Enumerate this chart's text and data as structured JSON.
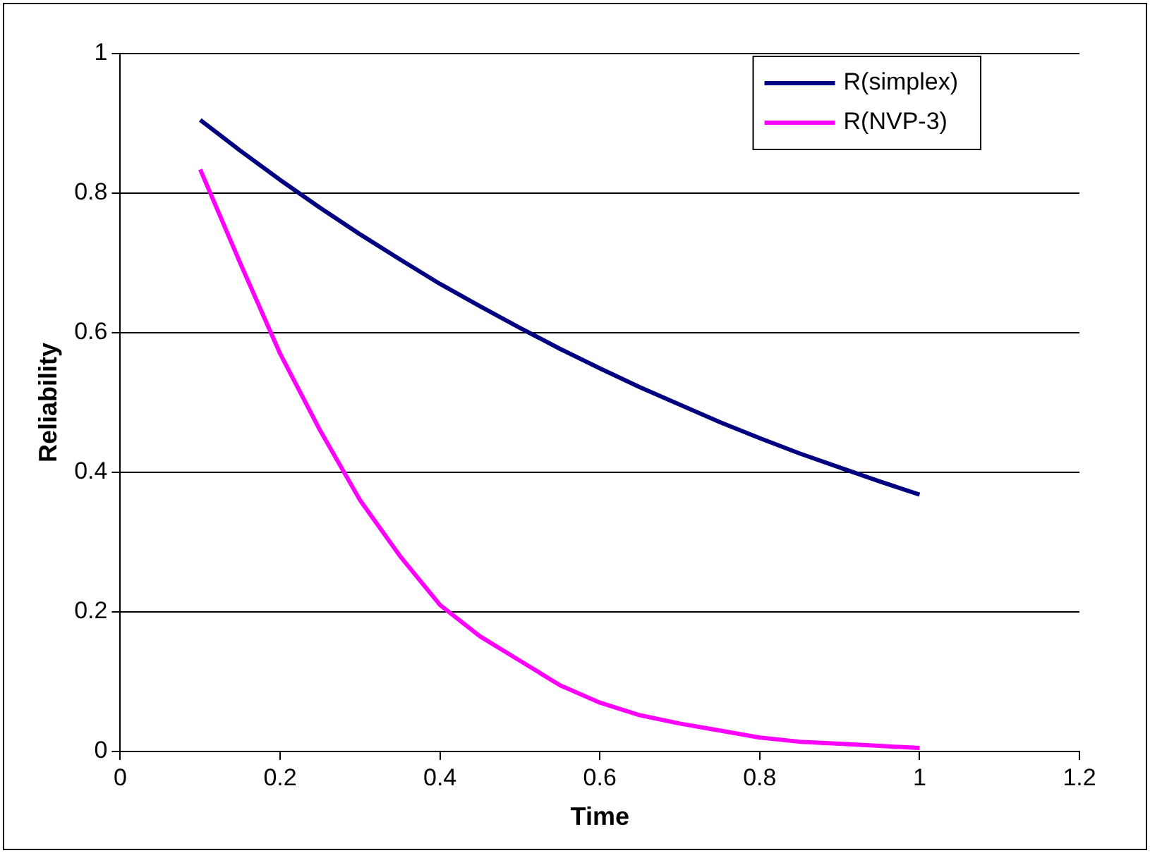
{
  "chart_data": {
    "type": "line",
    "xlabel": "Time",
    "ylabel": "Reliability",
    "x": [
      0.1,
      0.15,
      0.2,
      0.25,
      0.3,
      0.35,
      0.4,
      0.45,
      0.5,
      0.55,
      0.6,
      0.65,
      0.7,
      0.75,
      0.8,
      0.85,
      0.9,
      0.95,
      1.0
    ],
    "series": [
      {
        "name": "R(simplex)",
        "color": "#000080",
        "values": [
          0.905,
          0.861,
          0.819,
          0.779,
          0.741,
          0.705,
          0.67,
          0.638,
          0.607,
          0.577,
          0.549,
          0.522,
          0.497,
          0.472,
          0.449,
          0.427,
          0.407,
          0.387,
          0.368
        ]
      },
      {
        "name": "R(NVP-3)",
        "color": "#ff00ff",
        "values": [
          0.834,
          0.7,
          0.57,
          0.46,
          0.36,
          0.28,
          0.21,
          0.165,
          0.13,
          0.095,
          0.07,
          0.052,
          0.04,
          0.03,
          0.02,
          0.014,
          0.011,
          0.008,
          0.005
        ]
      }
    ],
    "xlim": [
      0,
      1.2
    ],
    "xticks": [
      0,
      0.2,
      0.4,
      0.6,
      0.8,
      1,
      1.2
    ],
    "ylim": [
      0,
      1
    ],
    "yticks": [
      0,
      0.2,
      0.4,
      0.6,
      0.8,
      1
    ],
    "grid": "y",
    "legend": "top right",
    "marker": "none",
    "line_style": "solid"
  }
}
